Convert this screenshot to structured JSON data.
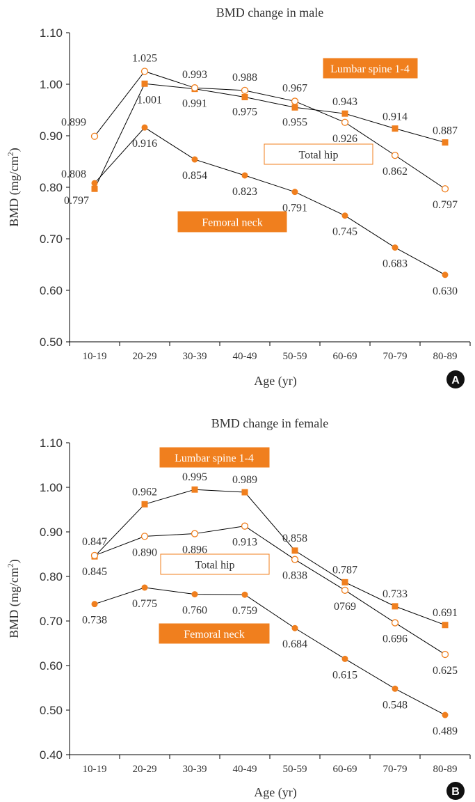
{
  "chart_data": [
    {
      "panel": "A",
      "type": "line",
      "title": "BMD change in male",
      "xlabel": "Age (yr)",
      "ylabel_main": "BMD (mg/cm",
      "ylabel_sup": "2",
      "ylabel_end": ")",
      "ylim": [
        0.5,
        1.1
      ],
      "yticks": [
        "0.50",
        "0.60",
        "0.70",
        "0.80",
        "0.90",
        "1.00",
        "1.10"
      ],
      "categories": [
        "10-19",
        "20-29",
        "30-39",
        "40-49",
        "50-59",
        "60-69",
        "70-79",
        "80-89"
      ],
      "grid": false,
      "series": [
        {
          "name": "Lumbar spine 1-4",
          "marker": "square",
          "values": [
            0.797,
            1.001,
            0.991,
            0.975,
            0.955,
            0.943,
            0.914,
            0.887
          ],
          "labels": [
            "0.797",
            "1.001",
            "0.991",
            "0.975",
            "0.955",
            "0.943",
            "0.914",
            "0.887"
          ]
        },
        {
          "name": "Total hip",
          "marker": "open-circle",
          "values": [
            0.899,
            1.025,
            0.993,
            0.988,
            0.967,
            0.926,
            0.862,
            0.797
          ],
          "labels": [
            "0.899",
            "1.025",
            "0.993",
            "0.988",
            "0.967",
            "0.926",
            "0.862",
            "0.797"
          ]
        },
        {
          "name": "Femoral neck",
          "marker": "filled-circle",
          "values": [
            0.808,
            0.916,
            0.854,
            0.823,
            0.791,
            0.745,
            0.683,
            0.63
          ],
          "labels": [
            "0.808",
            "0.916",
            "0.854",
            "0.823",
            "0.791",
            "0.745",
            "0.683",
            "0.630"
          ]
        }
      ]
    },
    {
      "panel": "B",
      "type": "line",
      "title": "BMD change in female",
      "xlabel": "Age (yr)",
      "ylabel_main": "BMD (mg/cm",
      "ylabel_sup": "2",
      "ylabel_end": ")",
      "ylim": [
        0.4,
        1.1
      ],
      "yticks": [
        "0.40",
        "0.50",
        "0.60",
        "0.70",
        "0.80",
        "0.90",
        "1.00",
        "1.10"
      ],
      "categories": [
        "10-19",
        "20-29",
        "30-39",
        "40-49",
        "50-59",
        "60-69",
        "70-79",
        "80-89"
      ],
      "grid": false,
      "series": [
        {
          "name": "Lumbar spine 1-4",
          "marker": "square",
          "values": [
            0.845,
            0.962,
            0.995,
            0.989,
            0.858,
            0.787,
            0.733,
            0.691
          ],
          "labels": [
            "0.845",
            "0.962",
            "0.995",
            "0.989",
            "0.858",
            "0.787",
            "0.733",
            "0.691"
          ]
        },
        {
          "name": "Total hip",
          "marker": "open-circle",
          "values": [
            0.847,
            0.89,
            0.896,
            0.913,
            0.838,
            0.769,
            0.696,
            0.625
          ],
          "labels": [
            "0.847",
            "0.890",
            "0.896",
            "0.913",
            "0.838",
            "0769",
            "0.696",
            "0.625"
          ]
        },
        {
          "name": "Femoral neck",
          "marker": "filled-circle",
          "values": [
            0.738,
            0.775,
            0.76,
            0.759,
            0.684,
            0.615,
            0.548,
            0.489
          ],
          "labels": [
            "0.738",
            "0.775",
            "0.760",
            "0.759",
            "0.684",
            "0.615",
            "0.548",
            "0.489"
          ]
        }
      ]
    }
  ],
  "colors": {
    "accent": "#F07F1E",
    "line": "#000000",
    "text": "#333333",
    "badge": "#111111"
  }
}
